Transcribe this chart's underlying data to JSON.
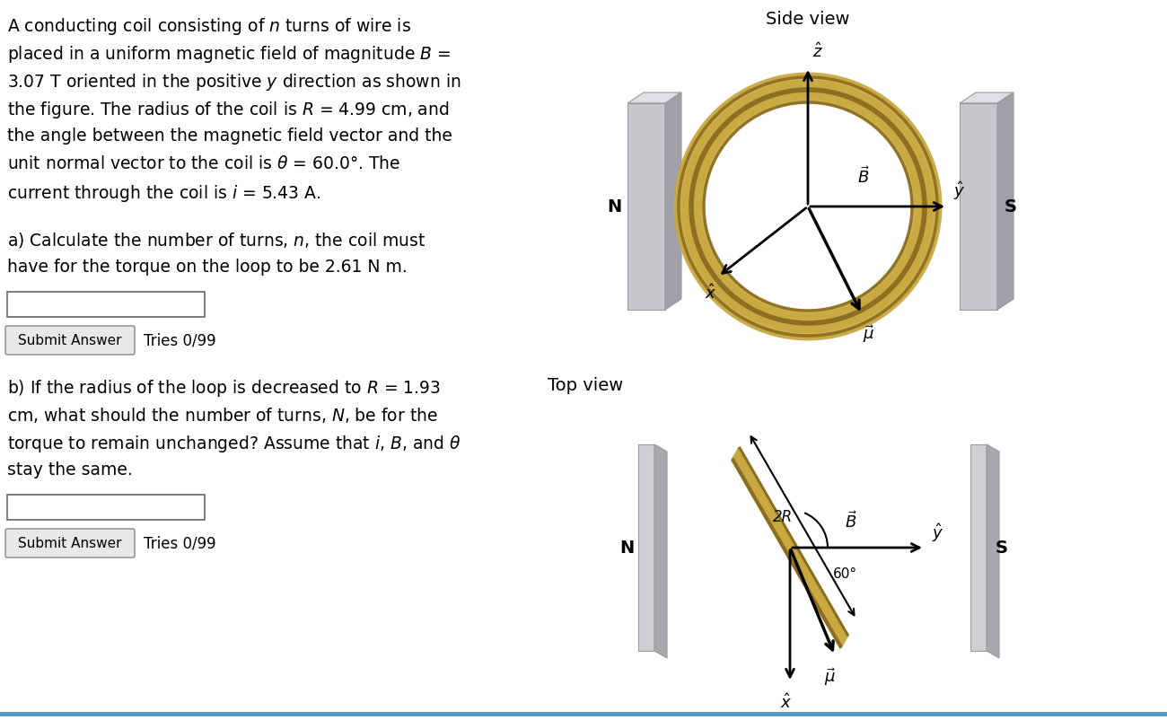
{
  "bg_color": "#ffffff",
  "text_color": "#000000",
  "problem_text_lines": [
    "A conducting coil consisting of $n$ turns of wire is",
    "placed in a uniform magnetic field of magnitude $B$ =",
    "3.07 T oriented in the positive $y$ direction as shown in",
    "the figure. The radius of the coil is $R$ = 4.99 cm, and",
    "the angle between the magnetic field vector and the",
    "unit normal vector to the coil is $\\theta$ = 60.0°. The",
    "current through the coil is $i$ = 5.43 A."
  ],
  "part_a_lines": [
    "a) Calculate the number of turns, $n$, the coil must",
    "have for the torque on the loop to be 2.61 N m."
  ],
  "part_b_lines": [
    "b) If the radius of the loop is decreased to $R$ = 1.93",
    "cm, what should the number of turns, $N$, be for the",
    "torque to remain unchanged? Assume that $i$, $B$, and $\\theta$",
    "stay the same."
  ],
  "side_view_label": "Side view",
  "top_view_label": "Top view",
  "coil_color": "#c8a840",
  "coil_color_dark": "#8a6c20",
  "coil_color_mid": "#b09030",
  "submit_button_text": "Submit Answer",
  "tries_text": "Tries 0/99",
  "bottom_line_color": "#5599cc",
  "plate_face": "#c8c8cc",
  "plate_top": "#e0e0e4",
  "plate_side": "#a0a0a8"
}
